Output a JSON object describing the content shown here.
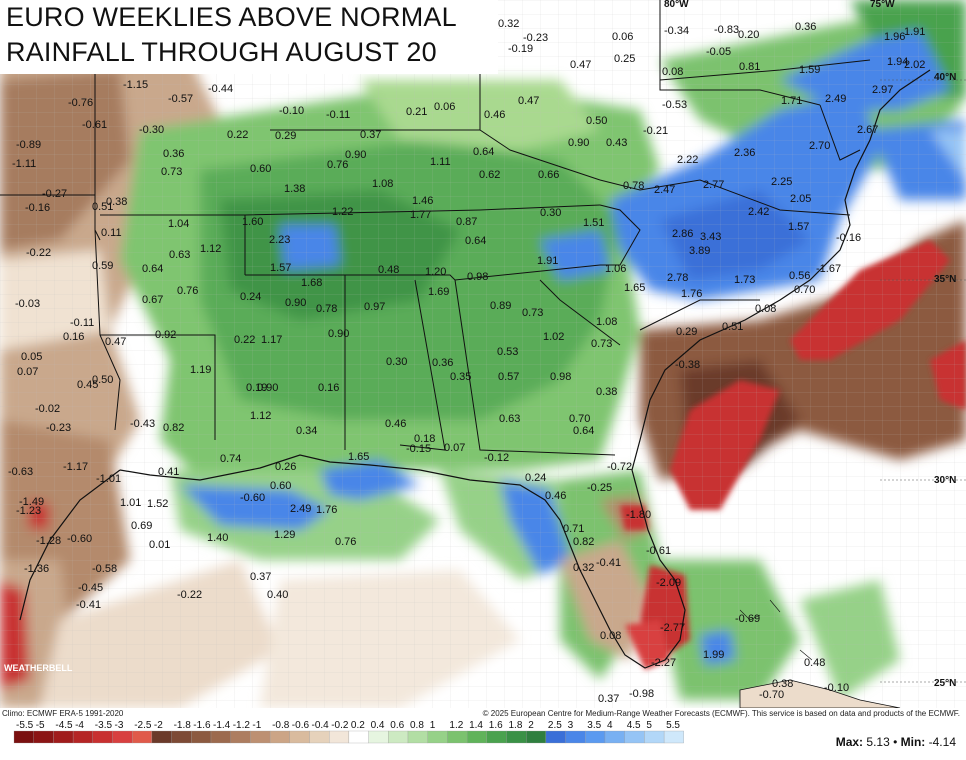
{
  "title": {
    "line1": "EURO WEEKLIES ABOVE NORMAL",
    "line2": "RAINFALL THROUGH AUGUST 20"
  },
  "footer": {
    "climo": "Climo: ECMWF ERA-5 1991-2020",
    "copyright": "© 2025 European Centre for Medium-Range Weather Forecasts (ECMWF). This service is based on data and products of the ECMWF.",
    "max_label": "Max:",
    "max_value": "5.13",
    "min_label": "Min:",
    "min_value": "-4.14",
    "separator": "•"
  },
  "logo": "WEATHERBELL",
  "lat_labels": [
    "40°N",
    "35°N",
    "30°N",
    "25°N"
  ],
  "lon_labels": [
    "80°W",
    "75°W"
  ],
  "legend": {
    "labels": [
      "-5.5",
      "-5",
      "-4.5",
      "-4",
      "-3.5",
      "-3",
      "-2.5",
      "-2",
      "-1.8",
      "-1.6",
      "-1.4",
      "-1.2",
      "-1",
      "-0.8",
      "-0.6",
      "-0.4",
      "-0.2",
      "0.2",
      "0.4",
      "0.6",
      "0.8",
      "1",
      "1.2",
      "1.4",
      "1.6",
      "1.8",
      "2",
      "2.5",
      "3",
      "3.5",
      "4",
      "4.5",
      "5",
      "5.5"
    ],
    "colors": [
      "#7a1010",
      "#8b1515",
      "#a01c1c",
      "#b52525",
      "#c83030",
      "#d84040",
      "#e05a4a",
      "#6b3a2a",
      "#7d4a35",
      "#8c5a40",
      "#9c6a4e",
      "#ad7d60",
      "#bd9072",
      "#cca586",
      "#d9bb9e",
      "#e6d2bb",
      "#f2e6d9",
      "#ffffff",
      "#e6f5e0",
      "#cdeac2",
      "#b2dea4",
      "#96d188",
      "#7bc26e",
      "#60b35a",
      "#4aa24e",
      "#3a9146",
      "#2f7f3f",
      "#3a6fd8",
      "#4a86e8",
      "#5b9af0",
      "#78b0f2",
      "#95c4f5",
      "#b2d7f8",
      "#cfe8fb"
    ]
  },
  "values": [
    {
      "t": "0.32"
    },
    {
      "t": "-0.23"
    },
    {
      "t": "-0.19"
    },
    {
      "t": "0.06"
    },
    {
      "t": "0.25"
    },
    {
      "t": "0.47"
    },
    {
      "t": "-0.34"
    },
    {
      "t": "-0.83"
    },
    {
      "t": "0.20"
    },
    {
      "t": "-0.05"
    },
    {
      "t": "0.36"
    },
    {
      "t": "1.96"
    },
    {
      "t": "1.91"
    },
    {
      "t": "0.08"
    },
    {
      "t": "0.81"
    },
    {
      "t": "1.59"
    },
    {
      "t": "1.94"
    },
    {
      "t": "2.02"
    },
    {
      "t": "2.97"
    },
    {
      "t": "-1.15"
    },
    {
      "t": "-0.57"
    },
    {
      "t": "-0.44"
    },
    {
      "t": "-0.76"
    },
    {
      "t": "-0.61"
    },
    {
      "t": "-0.30"
    },
    {
      "t": "-0.10"
    },
    {
      "t": "-0.11"
    },
    {
      "t": "0.21"
    },
    {
      "t": "0.06"
    },
    {
      "t": "0.47"
    },
    {
      "t": "-0.53"
    },
    {
      "t": "1.71"
    },
    {
      "t": "2.49"
    },
    {
      "t": "0.22"
    },
    {
      "t": "0.29"
    },
    {
      "t": "0.37"
    },
    {
      "t": "0.46"
    },
    {
      "t": "0.50"
    },
    {
      "t": "-0.21"
    },
    {
      "t": "2.67"
    },
    {
      "t": "-0.89"
    },
    {
      "t": "-1.11"
    },
    {
      "t": "0.36"
    },
    {
      "t": "0.73"
    },
    {
      "t": "0.60"
    },
    {
      "t": "0.76"
    },
    {
      "t": "0.90"
    },
    {
      "t": "1.11"
    },
    {
      "t": "0.64"
    },
    {
      "t": "0.90"
    },
    {
      "t": "0.43"
    },
    {
      "t": "2.22"
    },
    {
      "t": "2.36"
    },
    {
      "t": "2.70"
    },
    {
      "t": "-0.27"
    },
    {
      "t": "-0.16"
    },
    {
      "t": "0.51"
    },
    {
      "t": "0.38"
    },
    {
      "t": "1.38"
    },
    {
      "t": "1.08"
    },
    {
      "t": "0.62"
    },
    {
      "t": "0.66"
    },
    {
      "t": "0.78"
    },
    {
      "t": "2.47"
    },
    {
      "t": "2.77"
    },
    {
      "t": "2.25"
    },
    {
      "t": "2.05"
    },
    {
      "t": "1.22"
    },
    {
      "t": "1.46"
    },
    {
      "t": "1.77"
    },
    {
      "t": "0.30"
    },
    {
      "t": "2.42"
    },
    {
      "t": "1.04"
    },
    {
      "t": "1.60"
    },
    {
      "t": "0.87"
    },
    {
      "t": "1.51"
    },
    {
      "t": "1.57"
    },
    {
      "t": "0.11"
    },
    {
      "t": "2.23"
    },
    {
      "t": "0.64"
    },
    {
      "t": "2.86"
    },
    {
      "t": "3.43"
    },
    {
      "t": "3.89"
    },
    {
      "t": "-0.22"
    },
    {
      "t": "-0.16"
    },
    {
      "t": "0.63"
    },
    {
      "t": "1.12"
    },
    {
      "t": "1.57"
    },
    {
      "t": "0.59"
    },
    {
      "t": "0.64"
    },
    {
      "t": "0.48"
    },
    {
      "t": "1.20"
    },
    {
      "t": "0.98"
    },
    {
      "t": "1.91"
    },
    {
      "t": "1.06"
    },
    {
      "t": "2.78"
    },
    {
      "t": "1.73"
    },
    {
      "t": "0.56"
    },
    {
      "t": "-1.67"
    },
    {
      "t": "1.68"
    },
    {
      "t": "1.69"
    },
    {
      "t": "1.65"
    },
    {
      "t": "1.76"
    },
    {
      "t": "0.70"
    },
    {
      "t": "0.76"
    },
    {
      "t": "0.67"
    },
    {
      "t": "0.24"
    },
    {
      "t": "0.90"
    },
    {
      "t": "0.78"
    },
    {
      "t": "0.97"
    },
    {
      "t": "0.89"
    },
    {
      "t": "0.73"
    },
    {
      "t": "0.08"
    },
    {
      "t": "1.08"
    },
    {
      "t": "-0.03"
    },
    {
      "t": "-0.11"
    },
    {
      "t": "0.16"
    },
    {
      "t": "0.47"
    },
    {
      "t": "0.92"
    },
    {
      "t": "0.22"
    },
    {
      "t": "1.17"
    },
    {
      "t": "0.90"
    },
    {
      "t": "1.02"
    },
    {
      "t": "0.73"
    },
    {
      "t": "0.29"
    },
    {
      "t": "0.51"
    },
    {
      "t": "0.05"
    },
    {
      "t": "0.07"
    },
    {
      "t": "1.19"
    },
    {
      "t": "0.30"
    },
    {
      "t": "0.36"
    },
    {
      "t": "0.53"
    },
    {
      "t": "-0.38"
    },
    {
      "t": "0.45"
    },
    {
      "t": "0.50"
    },
    {
      "t": "0.35"
    },
    {
      "t": "0.57"
    },
    {
      "t": "0.98"
    },
    {
      "t": "0.19"
    },
    {
      "t": "0.90"
    },
    {
      "t": "0.16"
    },
    {
      "t": "0.38"
    },
    {
      "t": "-0.02"
    },
    {
      "t": "1.12"
    },
    {
      "t": "0.46"
    },
    {
      "t": "0.63"
    },
    {
      "t": "0.70"
    },
    {
      "t": "-0.43"
    },
    {
      "t": "0.82"
    },
    {
      "t": "0.34"
    },
    {
      "t": "0.64"
    },
    {
      "t": "-0.23"
    },
    {
      "t": "0.18"
    },
    {
      "t": "0.07"
    },
    {
      "t": "-0.15"
    },
    {
      "t": "1.65"
    },
    {
      "t": "-0.12"
    },
    {
      "t": "0.74"
    },
    {
      "t": "0.26"
    },
    {
      "t": "-0.72"
    },
    {
      "t": "-0.63"
    },
    {
      "t": "-1.17"
    },
    {
      "t": "0.41"
    },
    {
      "t": "-1.01"
    },
    {
      "t": "0.24"
    },
    {
      "t": "-0.25"
    },
    {
      "t": "-0.60"
    },
    {
      "t": "0.60"
    },
    {
      "t": "0.46"
    },
    {
      "t": "-1.49"
    },
    {
      "t": "1.01"
    },
    {
      "t": "1.52"
    },
    {
      "t": "2.49"
    },
    {
      "t": "1.76"
    },
    {
      "t": "-1.80"
    },
    {
      "t": "-1.23"
    },
    {
      "t": "0.69"
    },
    {
      "t": "0.71"
    },
    {
      "t": "1.40"
    },
    {
      "t": "1.29"
    },
    {
      "t": "0.82"
    },
    {
      "t": "-1.28"
    },
    {
      "t": "-0.60"
    },
    {
      "t": "0.01"
    },
    {
      "t": "0.76"
    },
    {
      "t": "-0.61"
    },
    {
      "t": "-0.41"
    },
    {
      "t": "-1.36"
    },
    {
      "t": "-0.58"
    },
    {
      "t": "0.37"
    },
    {
      "t": "0.32"
    },
    {
      "t": "-2.09"
    },
    {
      "t": "-0.45"
    },
    {
      "t": "-0.22"
    },
    {
      "t": "0.40"
    },
    {
      "t": "-0.41"
    },
    {
      "t": "-0.69"
    },
    {
      "t": "0.08"
    },
    {
      "t": "-2.77"
    },
    {
      "t": "1.99"
    },
    {
      "t": "-2.27"
    },
    {
      "t": "0.48"
    },
    {
      "t": "0.38"
    },
    {
      "t": "-0.70"
    },
    {
      "t": "-0.10"
    },
    {
      "t": "0.37"
    },
    {
      "t": "-0.98"
    }
  ]
}
